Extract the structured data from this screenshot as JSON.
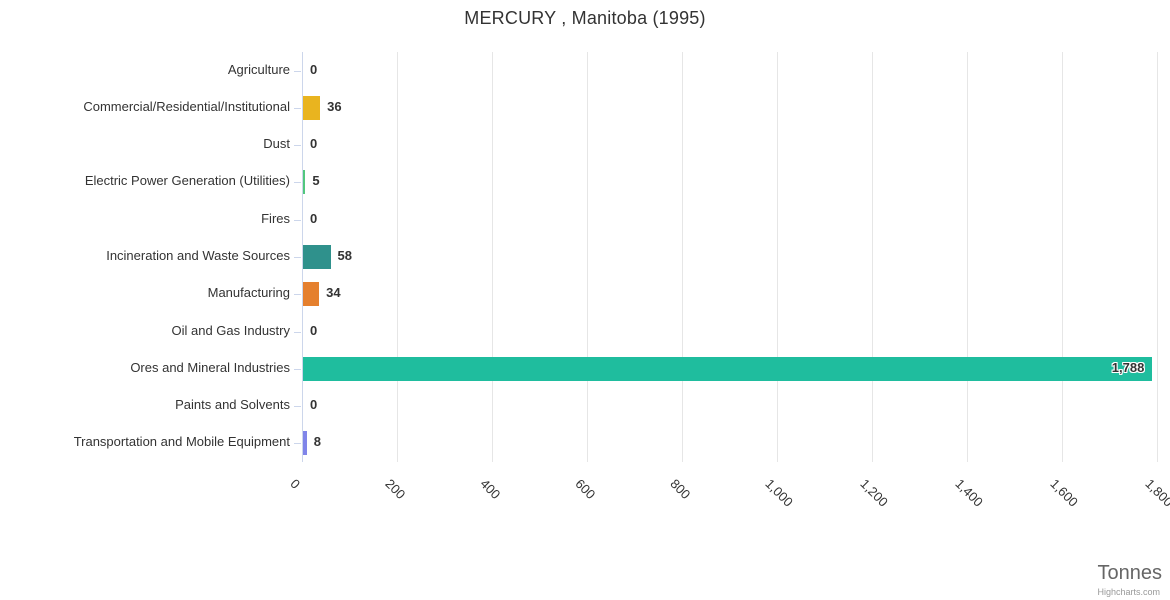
{
  "title": "MERCURY , Manitoba (1995)",
  "x_axis_title": "Tonnes",
  "credits": "Highcharts.com",
  "chart_data": {
    "type": "bar",
    "orientation": "horizontal",
    "title": "MERCURY , Manitoba (1995)",
    "xlabel": "Tonnes",
    "ylabel": "",
    "xlim": [
      0,
      1800
    ],
    "x_tick_interval": 200,
    "x_tick_labels": [
      "0",
      "200",
      "400",
      "600",
      "800",
      "1,000",
      "1,200",
      "1,400",
      "1,600",
      "1,800"
    ],
    "grid": true,
    "legend": false,
    "categories": [
      "Agriculture",
      "Commercial/Residential/Institutional",
      "Dust",
      "Electric Power Generation (Utilities)",
      "Fires",
      "Incineration and Waste Sources",
      "Manufacturing",
      "Oil and Gas Industry",
      "Ores and Mineral Industries",
      "Paints and Solvents",
      "Transportation and Mobile Equipment"
    ],
    "values": [
      0,
      36,
      0,
      5,
      0,
      58,
      34,
      0,
      1788,
      0,
      8
    ],
    "value_labels": [
      "0",
      "36",
      "0",
      "5",
      "0",
      "58",
      "34",
      "0",
      "1,788",
      "0",
      "8"
    ],
    "bar_colors": [
      null,
      "#e9b41f",
      null,
      "#52c77e",
      null,
      "#2f918c",
      "#e5802e",
      null,
      "#1fbd9e",
      null,
      "#8085e9"
    ]
  },
  "colors": {
    "grid": "#e6e6e6",
    "axis_line": "#ccd6eb",
    "tick": "#ccd6eb",
    "text": "#333333",
    "axis_title_text": "#666666",
    "credits_text": "#999999"
  }
}
